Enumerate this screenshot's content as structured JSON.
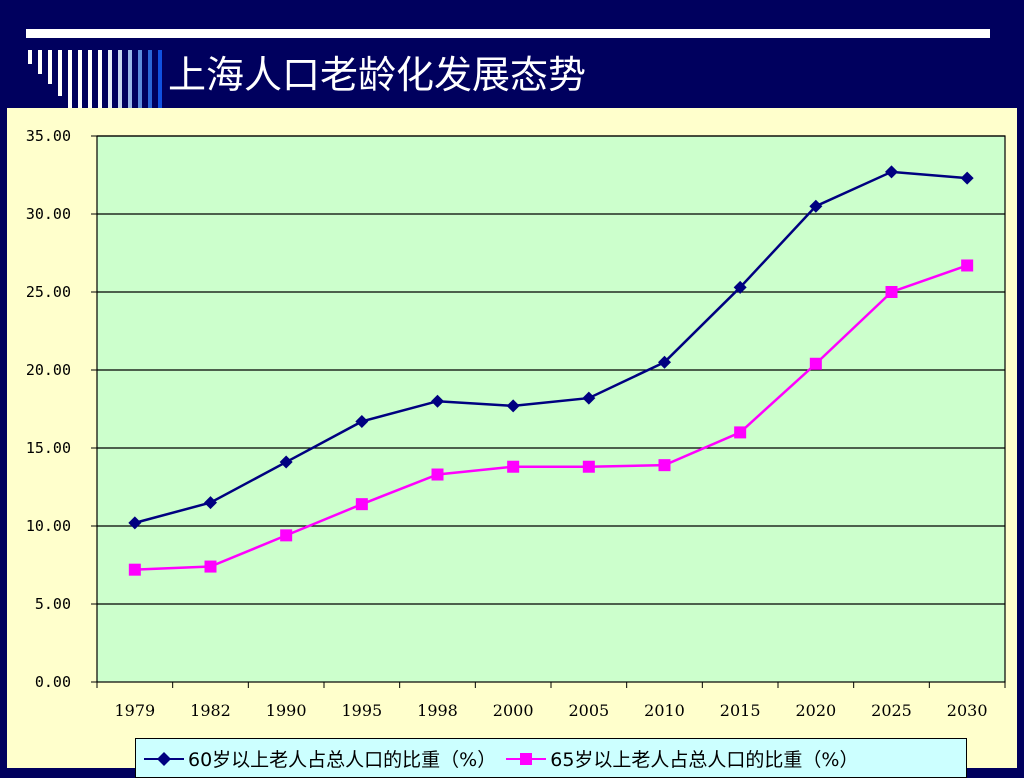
{
  "slide": {
    "title": "上海人口老龄化发展态势"
  },
  "colors": {
    "background": "#00005e",
    "plot_area": "#ccffcc",
    "panel": "#ffffcc",
    "legend_bg": "#ccffff",
    "series_1": "#000080",
    "series_2": "#ff00ff"
  },
  "chart_data": {
    "type": "line",
    "title": "",
    "xlabel": "",
    "ylabel": "",
    "categories": [
      "1979",
      "1982",
      "1990",
      "1995",
      "1998",
      "2000",
      "2005",
      "2010",
      "2015",
      "2020",
      "2025",
      "2030"
    ],
    "ylim": [
      0,
      35
    ],
    "yticks": [
      "0.00",
      "5.00",
      "10.00",
      "15.00",
      "20.00",
      "25.00",
      "30.00",
      "35.00"
    ],
    "grid": "horizontal",
    "legend_position": "bottom",
    "series": [
      {
        "name": "60岁以上老人占总人口的比重（%）",
        "marker": "diamond",
        "values": [
          10.2,
          11.5,
          14.1,
          16.7,
          18.0,
          17.7,
          18.2,
          20.5,
          25.3,
          30.5,
          32.7,
          32.3
        ]
      },
      {
        "name": "65岁以上老人占总人口的比重（%）",
        "marker": "square",
        "values": [
          7.2,
          7.4,
          9.4,
          11.4,
          13.3,
          13.8,
          13.8,
          13.9,
          16.0,
          20.4,
          25.0,
          26.7
        ]
      }
    ]
  }
}
